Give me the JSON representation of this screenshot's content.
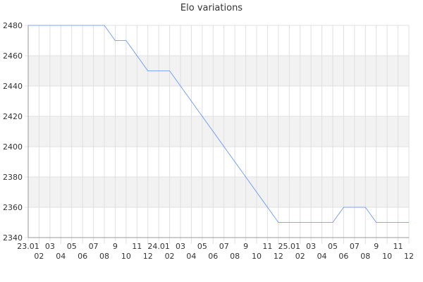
{
  "chart_data": {
    "type": "line",
    "title": "Elo variations",
    "xlabel": "",
    "ylabel": "",
    "ylim": [
      2340,
      2480
    ],
    "yticks": [
      2340,
      2360,
      2380,
      2400,
      2420,
      2440,
      2460,
      2480
    ],
    "grid": true,
    "line_color": "#5b8ff9",
    "band_color": "#f2f2f2",
    "categories": [
      "23.01",
      "02",
      "03",
      "04",
      "05",
      "06",
      "07",
      "08",
      "9",
      "10",
      "11",
      "12",
      "24.01",
      "02",
      "03",
      "04",
      "05",
      "06",
      "07",
      "08",
      "9",
      "10",
      "11",
      "12",
      "25.01",
      "02",
      "03",
      "04",
      "05",
      "06",
      "07",
      "08",
      "9",
      "10",
      "11",
      "12"
    ],
    "values": [
      2480,
      2480,
      2480,
      2480,
      2480,
      2480,
      2480,
      2480,
      2470,
      2470,
      2460,
      2450,
      2450,
      2450,
      2440,
      2430,
      2420,
      2410,
      2400,
      2390,
      2380,
      2370,
      2360,
      2350,
      2350,
      2350,
      2350,
      2350,
      2350,
      2360,
      2360,
      2360,
      2350,
      2350,
      2350,
      2350
    ]
  }
}
